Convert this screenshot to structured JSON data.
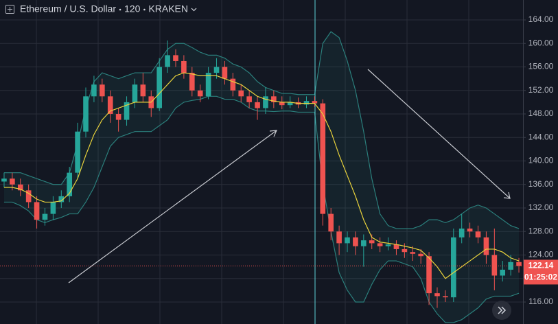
{
  "chart_data": {
    "type": "candlestick",
    "title": "Ethereum / U.S. Dollar",
    "interval": "120",
    "exchange": "KRAKEN",
    "countdown": "01:25:02",
    "up_color": "#26a69a",
    "down_color": "#ef5350",
    "ma_color": "#e8d23c",
    "band_color": "#2b7f7c",
    "grid": true,
    "ylim": [
      112.26,
      167.39
    ],
    "yticks": [
      {
        "value": 116,
        "label": "116.00"
      },
      {
        "value": 120,
        "label": "120.00"
      },
      {
        "value": 124,
        "label": "124.00"
      },
      {
        "value": 128,
        "label": "128.00"
      },
      {
        "value": 132,
        "label": "132.00"
      },
      {
        "value": 136,
        "label": "136.00"
      },
      {
        "value": 140,
        "label": "140.00"
      },
      {
        "value": 144,
        "label": "144.00"
      },
      {
        "value": 148,
        "label": "148.00"
      },
      {
        "value": 152,
        "label": "152.00"
      },
      {
        "value": 156,
        "label": "156.00"
      },
      {
        "value": 160,
        "label": "160.00"
      },
      {
        "value": 164,
        "label": "164.00"
      }
    ],
    "open": [
      136.5,
      137,
      136,
      135,
      133,
      130,
      131,
      133,
      134,
      138,
      145,
      151,
      153,
      151,
      148,
      147,
      150,
      153,
      151,
      149,
      156,
      158,
      157,
      155,
      152,
      151,
      155,
      156,
      154,
      152,
      151,
      150,
      149,
      151,
      150,
      149.5,
      150,
      149.6,
      150.2,
      149.8,
      131,
      128,
      126,
      127,
      125.5,
      126.5,
      126,
      125.5,
      125.8,
      125,
      124.5,
      124.2,
      123.8,
      117.5,
      117,
      116.8,
      127,
      128.5,
      128,
      127,
      124,
      120.5,
      121.5,
      122.8
    ],
    "high": [
      138,
      138,
      137,
      136,
      134,
      132,
      134,
      135,
      139,
      146.5,
      152.5,
      154.5,
      154,
      152,
      149,
      151,
      154,
      155,
      152,
      157.5,
      160.5,
      159,
      158,
      156,
      153,
      156,
      157.5,
      157,
      155,
      153,
      152,
      151,
      152.5,
      152,
      151,
      151,
      150.8,
      151,
      151,
      150.5,
      132,
      129,
      128,
      128,
      127.5,
      127.5,
      127,
      127,
      126.5,
      126,
      125.5,
      125,
      124.5,
      118.5,
      118,
      128.5,
      131,
      129.5,
      129,
      128,
      128.5,
      123,
      124,
      123.5
    ],
    "low": [
      135.5,
      135,
      134,
      132,
      128.5,
      129,
      130,
      132,
      133,
      137,
      144,
      150,
      150,
      146.5,
      145,
      146,
      149,
      150,
      147.5,
      148.5,
      155,
      156,
      154,
      151,
      150,
      150.5,
      154,
      153,
      151,
      150,
      149,
      147,
      148,
      149,
      148.8,
      149,
      149,
      149,
      149.2,
      129,
      126.5,
      124,
      124.5,
      124,
      122,
      125,
      124.5,
      124.8,
      124,
      123.5,
      123,
      122.5,
      115.5,
      115,
      116,
      116,
      126,
      127,
      126,
      122.5,
      118,
      119.5,
      120.5,
      121
    ],
    "close": [
      137,
      136,
      135,
      133,
      130,
      131,
      133,
      134,
      138,
      145,
      151,
      153,
      151,
      148,
      147,
      150,
      153,
      151,
      149,
      156,
      158,
      157,
      155,
      152,
      151,
      155,
      156,
      154,
      152,
      151,
      150,
      149,
      151,
      150,
      149.5,
      150,
      149.6,
      150.2,
      149.8,
      131,
      128,
      126,
      127,
      125.5,
      126.5,
      126,
      125.5,
      125.8,
      125,
      124.5,
      124.2,
      123.8,
      117.5,
      117,
      116.8,
      127,
      128.5,
      128,
      127,
      124,
      120.5,
      121.5,
      122.8,
      122.14
    ],
    "ma_values": [
      135.5,
      135.5,
      135.2,
      134.5,
      133.5,
      133,
      133,
      133.2,
      134.5,
      137,
      141,
      144.5,
      147,
      148.5,
      149,
      149.5,
      150,
      150,
      150,
      151.5,
      153,
      154.5,
      155,
      154.8,
      154.5,
      154.5,
      154.5,
      154,
      153.5,
      153,
      152,
      151,
      150.5,
      150.2,
      150,
      150,
      149.8,
      149.8,
      149.8,
      148,
      145,
      141,
      137.5,
      134,
      130,
      127,
      126.2,
      126,
      125.8,
      125.5,
      125.2,
      124.8,
      123.5,
      122,
      120,
      121,
      122,
      123,
      124,
      125,
      125,
      124.5,
      123.5,
      123
    ],
    "band_upper": [
      138,
      138,
      138,
      137.5,
      137,
      136.5,
      136,
      136,
      138,
      143,
      149,
      153.5,
      155,
      154.5,
      154,
      154.5,
      155,
      155,
      155,
      157,
      159,
      160,
      160,
      159.3,
      158.5,
      158,
      158,
      157.5,
      156.5,
      156,
      155,
      153.5,
      152.5,
      152,
      151.5,
      151.5,
      151.3,
      151.3,
      151.3,
      160,
      162,
      161,
      157,
      152,
      145,
      137,
      131,
      129,
      128.5,
      128.5,
      128.5,
      129,
      130,
      130,
      129.5,
      130,
      131,
      132,
      132.5,
      132,
      131,
      130,
      129,
      128.5
    ],
    "band_lower": [
      133,
      133,
      132.4,
      131.5,
      130,
      129.5,
      130,
      130.4,
      131,
      131,
      133,
      135.5,
      139,
      142.5,
      144,
      144.5,
      145,
      145,
      145,
      146,
      147,
      149,
      150,
      150.3,
      150.5,
      151,
      151,
      150.5,
      150.5,
      150,
      149,
      148.5,
      148.5,
      148.4,
      148.5,
      148.5,
      148.3,
      148.3,
      148.3,
      136,
      128,
      121,
      118,
      116,
      116,
      119,
      121.5,
      123,
      123,
      122.5,
      122,
      120,
      116,
      114,
      112.5,
      112.5,
      113,
      114,
      115,
      116.5,
      117,
      117,
      117,
      117.5
    ]
  }
}
